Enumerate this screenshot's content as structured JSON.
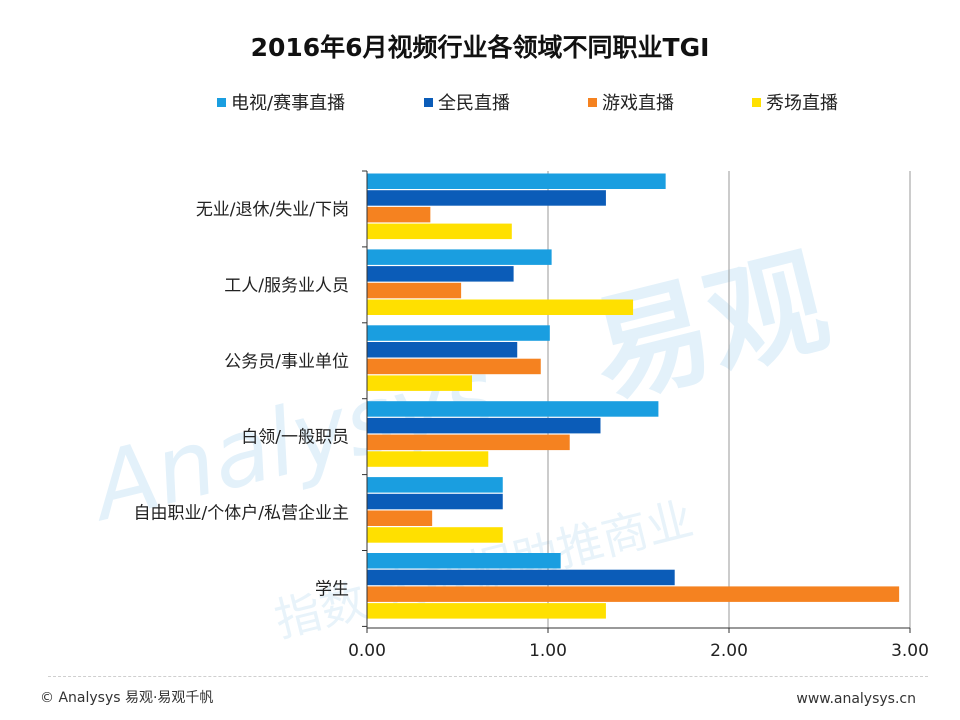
{
  "colors": {
    "tv_esports": "#1a9ee0",
    "all_people": "#0b5cb8",
    "game": "#f58220",
    "show": "#ffe000",
    "grid": "#9a9a9a",
    "axis": "#333333",
    "watermark": "#d9ecf7"
  },
  "watermark": {
    "brand": "易观",
    "latin": "Analysys",
    "slogan": "指数·大数据助推商业"
  },
  "footer": {
    "left": "© Analysys 易观·易观千帆",
    "right": "www.analysys.cn"
  },
  "chart_data": {
    "type": "bar",
    "orientation": "horizontal",
    "title": "2016年6月视频行业各领域不同职业TGI",
    "categories": [
      "无业/退休/失业/下岗",
      "工人/服务业人员",
      "公务员/事业单位",
      "白领/一般职员",
      "自由职业/个体户/私营企业主",
      "学生"
    ],
    "series": [
      {
        "name": "电视/赛事直播",
        "color_key": "tv_esports",
        "values": [
          1.65,
          1.02,
          1.01,
          1.61,
          0.75,
          1.07
        ]
      },
      {
        "name": "全民直播",
        "color_key": "all_people",
        "values": [
          1.32,
          0.81,
          0.83,
          1.29,
          0.75,
          1.7
        ]
      },
      {
        "name": "游戏直播",
        "color_key": "game",
        "values": [
          0.35,
          0.52,
          0.96,
          1.12,
          0.36,
          2.94
        ]
      },
      {
        "name": "秀场直播",
        "color_key": "show",
        "values": [
          0.8,
          1.47,
          0.58,
          0.67,
          0.75,
          1.32
        ]
      }
    ],
    "x_ticks": [
      "0.00",
      "1.00",
      "2.00",
      "3.00"
    ],
    "xlim": [
      0,
      3
    ],
    "grid": true,
    "legend": "top",
    "xlabel": "",
    "ylabel": ""
  }
}
